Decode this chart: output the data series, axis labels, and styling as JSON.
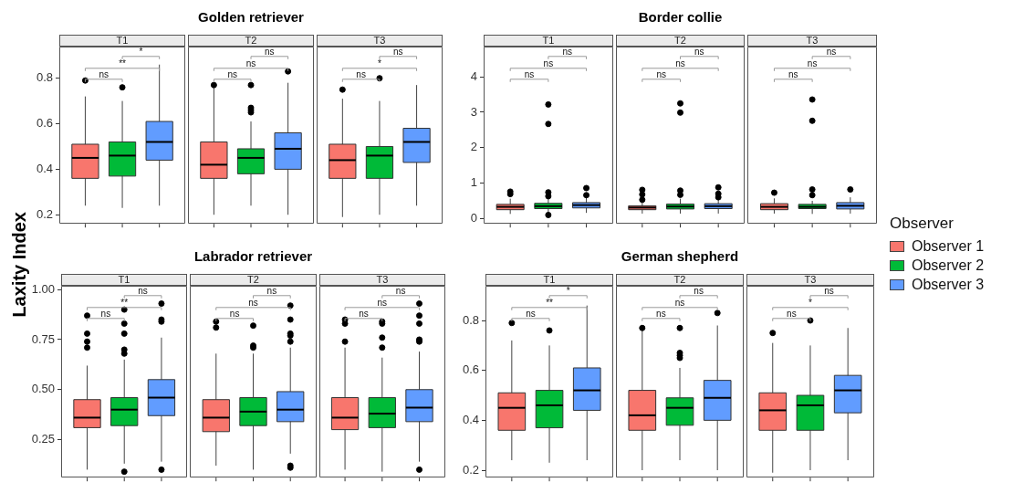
{
  "chart_data": [
    {
      "type": "box",
      "title": "Golden retriever",
      "ylabel": "Laxity Index",
      "categories": [
        "T1",
        "T2",
        "T3"
      ],
      "ylim": [
        0.16,
        0.94
      ],
      "yticks": [
        0.2,
        0.4,
        0.6,
        0.8
      ],
      "annotations": [
        "ns",
        "**",
        "*",
        "ns",
        "ns",
        "ns",
        "ns",
        "*",
        "ns"
      ],
      "series": [
        {
          "color": "#f8766d",
          "boxes": [
            {
              "low": 0.24,
              "q1": 0.36,
              "median": 0.45,
              "q3": 0.51,
              "high": 0.72,
              "outliers": [
                0.79
              ]
            },
            {
              "low": 0.2,
              "q1": 0.36,
              "median": 0.42,
              "q3": 0.52,
              "high": 0.76,
              "outliers": [
                0.77
              ]
            },
            {
              "low": 0.19,
              "q1": 0.36,
              "median": 0.44,
              "q3": 0.51,
              "high": 0.71,
              "outliers": [
                0.75
              ]
            }
          ]
        },
        {
          "color": "#00ba38",
          "boxes": [
            {
              "low": 0.23,
              "q1": 0.37,
              "median": 0.46,
              "q3": 0.52,
              "high": 0.7,
              "outliers": [
                0.76
              ]
            },
            {
              "low": 0.24,
              "q1": 0.38,
              "median": 0.45,
              "q3": 0.49,
              "high": 0.61,
              "outliers": [
                0.77,
                0.67,
                0.66,
                0.65
              ]
            },
            {
              "low": 0.2,
              "q1": 0.36,
              "median": 0.46,
              "q3": 0.5,
              "high": 0.7,
              "outliers": [
                0.8
              ]
            }
          ]
        },
        {
          "color": "#619cff",
          "boxes": [
            {
              "low": 0.24,
              "q1": 0.44,
              "median": 0.52,
              "q3": 0.61,
              "high": 0.86
            },
            {
              "low": 0.2,
              "q1": 0.4,
              "median": 0.49,
              "q3": 0.56,
              "high": 0.78,
              "outliers": [
                0.83
              ]
            },
            {
              "low": 0.24,
              "q1": 0.43,
              "median": 0.52,
              "q3": 0.58,
              "high": 0.77
            }
          ]
        }
      ]
    },
    {
      "type": "box",
      "title": "Border collie",
      "legend": "right",
      "legend_title": "Observer",
      "categories": [
        "T1",
        "T2",
        "T3"
      ],
      "ylim": [
        -0.15,
        4.86
      ],
      "yticks": [
        0,
        1,
        2,
        3,
        4
      ],
      "annotations": [
        "ns",
        "ns",
        "ns",
        "ns",
        "ns",
        "ns",
        "ns",
        "ns",
        "ns"
      ],
      "series": [
        {
          "name": "Observer 1",
          "color": "#f8766d",
          "boxes": [
            {
              "low": 0.13,
              "q1": 0.25,
              "median": 0.33,
              "q3": 0.4,
              "high": 0.56,
              "outliers": [
                0.76,
                0.69
              ]
            },
            {
              "low": 0.14,
              "q1": 0.25,
              "median": 0.31,
              "q3": 0.36,
              "high": 0.48,
              "outliers": [
                0.81,
                0.68,
                0.53
              ]
            },
            {
              "low": 0.14,
              "q1": 0.25,
              "median": 0.33,
              "q3": 0.42,
              "high": 0.57,
              "outliers": [
                0.73
              ]
            }
          ]
        },
        {
          "name": "Observer 2",
          "color": "#00ba38",
          "boxes": [
            {
              "low": 0.14,
              "q1": 0.28,
              "median": 0.35,
              "q3": 0.43,
              "high": 0.57,
              "outliers": [
                3.22,
                2.67,
                0.74,
                0.63,
                0.1
              ]
            },
            {
              "low": 0.14,
              "q1": 0.27,
              "median": 0.34,
              "q3": 0.41,
              "high": 0.56,
              "outliers": [
                3.25,
                2.99,
                0.79,
                0.67
              ]
            },
            {
              "low": 0.13,
              "q1": 0.28,
              "median": 0.33,
              "q3": 0.4,
              "high": 0.5,
              "outliers": [
                3.36,
                2.76,
                0.82,
                0.66
              ]
            }
          ]
        },
        {
          "name": "Observer 3",
          "color": "#619cff",
          "boxes": [
            {
              "low": 0.16,
              "q1": 0.3,
              "median": 0.38,
              "q3": 0.45,
              "high": 0.62,
              "outliers": [
                0.86,
                0.66
              ]
            },
            {
              "low": 0.14,
              "q1": 0.28,
              "median": 0.35,
              "q3": 0.42,
              "high": 0.55,
              "outliers": [
                0.88,
                0.7,
                0.6
              ]
            },
            {
              "low": 0.14,
              "q1": 0.27,
              "median": 0.36,
              "q3": 0.45,
              "high": 0.6,
              "outliers": [
                0.82
              ]
            }
          ]
        }
      ]
    },
    {
      "type": "box",
      "title": "Labrador retriever",
      "categories": [
        "T1",
        "T2",
        "T3"
      ],
      "ylim": [
        0.06,
        1.02
      ],
      "yticks": [
        {
          "value": 0.25,
          "label": "0.25"
        },
        {
          "value": 0.5,
          "label": "0.50"
        },
        {
          "value": 0.75,
          "label": "0.75"
        },
        {
          "value": 1,
          "label": "1.00"
        }
      ],
      "annotations": [
        "ns",
        "**",
        "ns",
        "ns",
        "ns",
        "ns",
        "ns",
        "ns",
        "ns"
      ],
      "series": [
        {
          "color": "#f8766d",
          "boxes": [
            {
              "low": 0.1,
              "q1": 0.31,
              "median": 0.36,
              "q3": 0.45,
              "high": 0.62,
              "outliers": [
                0.87,
                0.78,
                0.74,
                0.71
              ]
            },
            {
              "low": 0.12,
              "q1": 0.29,
              "median": 0.36,
              "q3": 0.45,
              "high": 0.68,
              "outliers": [
                0.84,
                0.81
              ]
            },
            {
              "low": 0.1,
              "q1": 0.3,
              "median": 0.36,
              "q3": 0.46,
              "high": 0.71,
              "outliers": [
                0.85,
                0.83,
                0.74
              ]
            }
          ]
        },
        {
          "color": "#00ba38",
          "boxes": [
            {
              "low": 0.13,
              "q1": 0.32,
              "median": 0.4,
              "q3": 0.46,
              "high": 0.65,
              "outliers": [
                0.9,
                0.83,
                0.78,
                0.7,
                0.68,
                0.09
              ]
            },
            {
              "low": 0.1,
              "q1": 0.32,
              "median": 0.39,
              "q3": 0.46,
              "high": 0.68,
              "outliers": [
                0.82,
                0.72,
                0.71
              ]
            },
            {
              "low": 0.09,
              "q1": 0.31,
              "median": 0.38,
              "q3": 0.46,
              "high": 0.66,
              "outliers": [
                0.84,
                0.83,
                0.76,
                0.71
              ]
            }
          ]
        },
        {
          "color": "#619cff",
          "boxes": [
            {
              "low": 0.14,
              "q1": 0.37,
              "median": 0.46,
              "q3": 0.55,
              "high": 0.76,
              "outliers": [
                0.93,
                0.85,
                0.84,
                0.1
              ]
            },
            {
              "low": 0.18,
              "q1": 0.34,
              "median": 0.4,
              "q3": 0.49,
              "high": 0.71,
              "outliers": [
                0.92,
                0.85,
                0.78,
                0.77,
                0.74,
                0.12,
                0.11
              ]
            },
            {
              "low": 0.14,
              "q1": 0.34,
              "median": 0.41,
              "q3": 0.5,
              "high": 0.69,
              "outliers": [
                0.93,
                0.87,
                0.83,
                0.75,
                0.74,
                0.1
              ]
            }
          ]
        }
      ]
    },
    {
      "type": "box",
      "title": "German shepherd",
      "categories": [
        "T1",
        "T2",
        "T3"
      ],
      "ylim": [
        0.17,
        0.94
      ],
      "yticks": [
        0.2,
        0.4,
        0.6,
        0.8
      ],
      "annotations": [
        "ns",
        "**",
        "*",
        "ns",
        "ns",
        "ns",
        "ns",
        "*",
        "ns"
      ],
      "series": [
        {
          "color": "#f8766d",
          "boxes": [
            {
              "low": 0.24,
              "q1": 0.36,
              "median": 0.45,
              "q3": 0.51,
              "high": 0.72,
              "outliers": [
                0.79
              ]
            },
            {
              "low": 0.2,
              "q1": 0.36,
              "median": 0.42,
              "q3": 0.52,
              "high": 0.76,
              "outliers": [
                0.77
              ]
            },
            {
              "low": 0.19,
              "q1": 0.36,
              "median": 0.44,
              "q3": 0.51,
              "high": 0.71,
              "outliers": [
                0.75
              ]
            }
          ]
        },
        {
          "color": "#00ba38",
          "boxes": [
            {
              "low": 0.23,
              "q1": 0.37,
              "median": 0.46,
              "q3": 0.52,
              "high": 0.7,
              "outliers": [
                0.76
              ]
            },
            {
              "low": 0.24,
              "q1": 0.38,
              "median": 0.45,
              "q3": 0.49,
              "high": 0.61,
              "outliers": [
                0.77,
                0.67,
                0.66,
                0.65
              ]
            },
            {
              "low": 0.2,
              "q1": 0.36,
              "median": 0.46,
              "q3": 0.5,
              "high": 0.7,
              "outliers": [
                0.8
              ]
            }
          ]
        },
        {
          "color": "#619cff",
          "boxes": [
            {
              "low": 0.24,
              "q1": 0.44,
              "median": 0.52,
              "q3": 0.61,
              "high": 0.86
            },
            {
              "low": 0.2,
              "q1": 0.4,
              "median": 0.49,
              "q3": 0.56,
              "high": 0.78,
              "outliers": [
                0.83
              ]
            },
            {
              "low": 0.24,
              "q1": 0.43,
              "median": 0.52,
              "q3": 0.58,
              "high": 0.77
            }
          ]
        }
      ]
    }
  ]
}
